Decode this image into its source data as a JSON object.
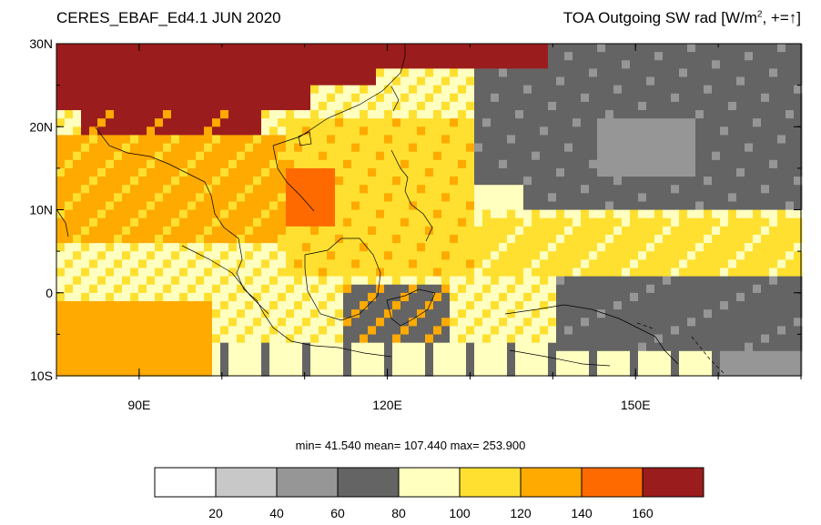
{
  "title_left": "CERES_EBAF_Ed4.1 JUN 2020",
  "title_right": {
    "text": "TOA Outgoing SW rad [W/m",
    "superscript": "2",
    "suffix": ", +=",
    "arrow": "↑",
    "close": "]"
  },
  "stats": {
    "min_label": "min=",
    "min": "41.540",
    "mean_label": "mean=",
    "mean": "107.440",
    "max_label": "max=",
    "max": "253.900"
  },
  "map": {
    "lon_range": [
      80,
      170
    ],
    "lat_range": [
      -10,
      30
    ],
    "lat_ticks": [
      {
        "value": 30,
        "label": "30N"
      },
      {
        "value": 20,
        "label": "20N"
      },
      {
        "value": 10,
        "label": "10N"
      },
      {
        "value": 0,
        "label": "0"
      },
      {
        "value": -10,
        "label": "10S"
      }
    ],
    "lon_ticks": [
      {
        "value": 90,
        "label": "90E"
      },
      {
        "value": 120,
        "label": "120E"
      },
      {
        "value": 150,
        "label": "150E"
      }
    ]
  },
  "colorbar": {
    "levels": [
      "20",
      "40",
      "60",
      "80",
      "100",
      "120",
      "140",
      "160"
    ],
    "colors": [
      "#ffffff",
      "#c8c8c8",
      "#969696",
      "#646464",
      "#ffffc0",
      "#ffe030",
      "#ffaa00",
      "#ff6a00",
      "#9b1c1c"
    ]
  }
}
